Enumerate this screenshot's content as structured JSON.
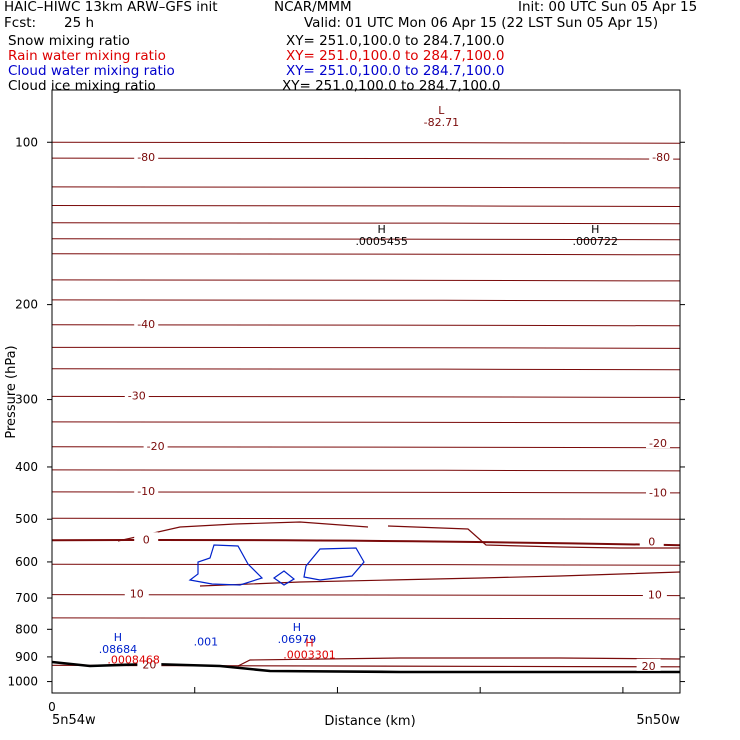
{
  "header": {
    "model_title": "HAIC–HIWC 13km ARW–GFS init",
    "org": "NCAR/MMM",
    "init": "Init: 00 UTC Sun 05 Apr 15",
    "fcst_label": "Fcst:",
    "fcst_value": "25 h",
    "valid": "Valid: 01 UTC Mon 06 Apr 15 (22 LST Sun 05 Apr 15)"
  },
  "fields": [
    {
      "name": "Snow mixing ratio",
      "xy": "XY= 251.0,100.0 to 284.7,100.0",
      "color": "#000000"
    },
    {
      "name": "Rain water mixing ratio",
      "xy": "XY= 251.0,100.0 to 284.7,100.0",
      "color": "#dd0000"
    },
    {
      "name": "Cloud water mixing ratio",
      "xy": "XY= 251.0,100.0 to 284.7,100.0",
      "color": "#0000cc"
    },
    {
      "name": "Cloud ice mixing ratio",
      "xy": "XY= 251.0,100.0 to 284.7,100.0",
      "color": "#000000"
    }
  ],
  "colors": {
    "temperature": "#7a0a0a",
    "cloud_water": "#0022cc",
    "rain": "#dd0000",
    "terrain": "#000000"
  },
  "chart_data": {
    "type": "cross-section contour",
    "ylabel": "Pressure (hPa)",
    "xlabel": "Distance (km)",
    "y_scale": "log",
    "ylim": [
      1050,
      80
    ],
    "xlim": [
      0,
      20
    ],
    "x_tick": "0",
    "x_left_label": "5n54w",
    "x_right_label": "5n50w",
    "yticks": [
      100,
      200,
      300,
      400,
      500,
      600,
      700,
      800,
      900,
      1000
    ],
    "isotherm_labels": [
      {
        "text": "-80",
        "x": 3.0,
        "p": 107
      },
      {
        "text": "-80",
        "x": 19.4,
        "p": 107
      },
      {
        "text": "-40",
        "x": 3.0,
        "p": 218
      },
      {
        "text": "-30",
        "x": 2.7,
        "p": 296
      },
      {
        "text": "-20",
        "x": 3.3,
        "p": 367
      },
      {
        "text": "-20",
        "x": 19.3,
        "p": 363
      },
      {
        "text": "-10",
        "x": 3.0,
        "p": 445
      },
      {
        "text": "-10",
        "x": 19.3,
        "p": 448
      },
      {
        "text": "0",
        "x": 3.0,
        "p": 547
      },
      {
        "text": "0",
        "x": 19.1,
        "p": 552
      },
      {
        "text": "10",
        "x": 2.7,
        "p": 690
      },
      {
        "text": "10",
        "x": 19.2,
        "p": 692
      },
      {
        "text": "20",
        "x": 3.1,
        "p": 933
      },
      {
        "text": "20",
        "x": 19.0,
        "p": 939
      }
    ],
    "extrema": [
      {
        "kind": "L",
        "value": "-82.71",
        "x": 12.4,
        "p": 91,
        "field": "temperature"
      },
      {
        "kind": "H",
        "value": ".0005455",
        "x": 10.5,
        "p": 151,
        "field": "cloud_ice"
      },
      {
        "kind": "H",
        "value": ".000722",
        "x": 17.3,
        "p": 151,
        "field": "cloud_ice"
      },
      {
        "kind": "H",
        "value": ".08684",
        "x": 2.1,
        "p": 862,
        "field": "cloud_water"
      },
      {
        "kind": "",
        "value": ".001",
        "x": 4.9,
        "p": 836,
        "field": "cloud_water"
      },
      {
        "kind": "H",
        "value": ".06979",
        "x": 7.8,
        "p": 827,
        "field": "cloud_water"
      },
      {
        "kind": "",
        "value": ".0008468",
        "x": 2.6,
        "p": 902,
        "field": "rain"
      },
      {
        "kind": "H",
        "value": ".0003301",
        "x": 8.2,
        "p": 883,
        "field": "rain"
      }
    ]
  }
}
